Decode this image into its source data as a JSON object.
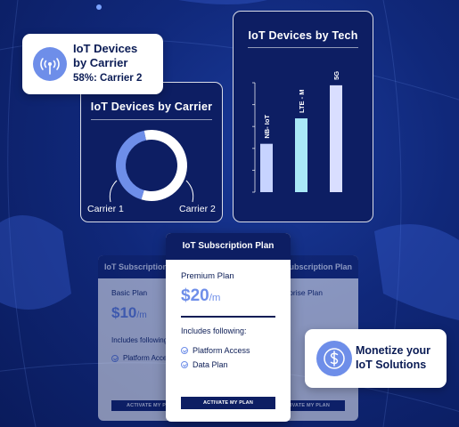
{
  "carrier_pill": {
    "title_line1": "IoT Devices",
    "title_line2": "by Carrier",
    "stat": "58%: Carrier 2",
    "icon": "antenna-icon"
  },
  "carrier_card": {
    "title": "IoT Devices by Carrier",
    "label_left": "Carrier 1",
    "label_right": "Carrier 2",
    "chart_data": {
      "type": "pie",
      "labels": [
        "Carrier 1",
        "Carrier 2"
      ],
      "values": [
        42,
        58
      ],
      "colors": [
        "#6e8ee9",
        "#ffffff"
      ]
    }
  },
  "tech_card": {
    "title": "IoT Devices by Tech",
    "chart_data": {
      "type": "bar",
      "categories": [
        "NB- IoT",
        "LTE - M",
        "5G"
      ],
      "values": [
        38,
        58,
        84
      ],
      "ylim": [
        0,
        100
      ],
      "colors": [
        "#c7d3ff",
        "#a9e9f7",
        "#d9deff"
      ]
    }
  },
  "plans": {
    "basic": {
      "header": "IoT Subscription Plan",
      "name": "Basic Plan",
      "price": "$10",
      "unit": "/m",
      "includes": "Includes following:",
      "feature": "Platform Access",
      "button": "ACTIVATE MY PLAN"
    },
    "premium": {
      "header": "IoT Subscription Plan",
      "name": "Premium Plan",
      "price": "$20",
      "unit": "/m",
      "includes": "Includes following:",
      "features": [
        "Platform Access",
        "Data Plan"
      ],
      "button": "ACTIVATE MY PLAN"
    },
    "right": {
      "header": "IoT Subscription Plan",
      "name": "Enterprise Plan",
      "button": "ACTIVATE MY PLAN"
    }
  },
  "monetize_pill": {
    "line1": "Monetize your",
    "line2": "IoT Solutions",
    "icon": "dollar-icon"
  },
  "colors": {
    "background": "#10287a",
    "card_dark": "#0d1e63",
    "accent": "#6e8ee9"
  }
}
